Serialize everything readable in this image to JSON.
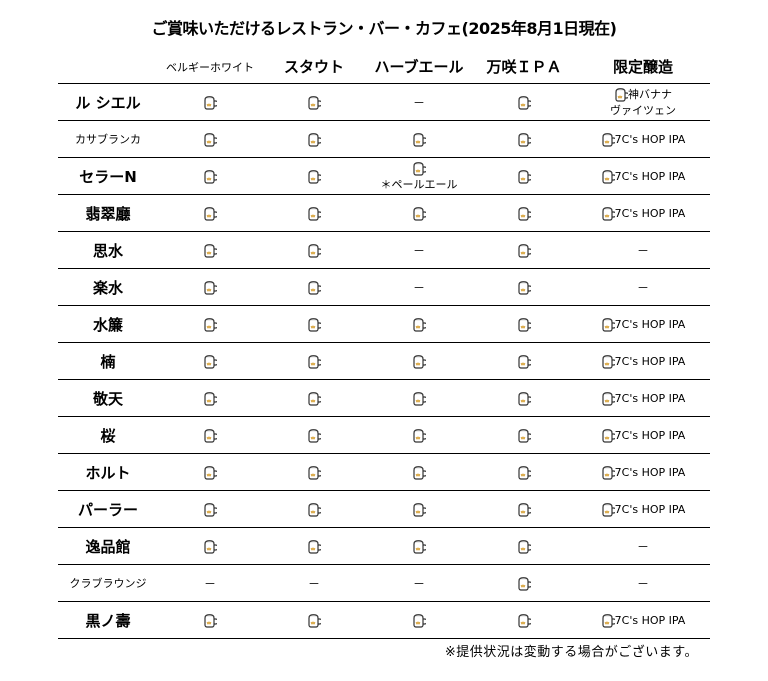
{
  "title": "ご賞味いただけるレストラン・バー・カフェ(2025年8月1日現在)",
  "columns": [
    "",
    "ベルギーホワイト",
    "スタウト",
    "ハーブエール",
    "万咲ＩＰＡ",
    "限定醸造"
  ],
  "icon": "beer-mug-icon",
  "rows": [
    {
      "name": "ル シエル",
      "cells": [
        {
          "icon": true
        },
        {
          "icon": true
        },
        {
          "text": "－"
        },
        {
          "icon": true
        },
        {
          "icon": true,
          "text": "神バナナ",
          "text2": "ヴァイツェン"
        }
      ]
    },
    {
      "name": "カサブランカ",
      "small": true,
      "cells": [
        {
          "icon": true
        },
        {
          "icon": true
        },
        {
          "icon": true
        },
        {
          "icon": true
        },
        {
          "icon": true,
          "text": "7C's HOP IPA"
        }
      ]
    },
    {
      "name": "セラーN",
      "cells": [
        {
          "icon": true
        },
        {
          "icon": true
        },
        {
          "icon": true,
          "text2": "＊ペールエール"
        },
        {
          "icon": true
        },
        {
          "icon": true,
          "text": "7C's HOP IPA"
        }
      ]
    },
    {
      "name": "翡翠廳",
      "cells": [
        {
          "icon": true
        },
        {
          "icon": true
        },
        {
          "icon": true
        },
        {
          "icon": true
        },
        {
          "icon": true,
          "text": "7C's HOP IPA"
        }
      ]
    },
    {
      "name": "思水",
      "cells": [
        {
          "icon": true
        },
        {
          "icon": true
        },
        {
          "text": "－"
        },
        {
          "icon": true
        },
        {
          "text": "－"
        }
      ]
    },
    {
      "name": "楽水",
      "cells": [
        {
          "icon": true
        },
        {
          "icon": true
        },
        {
          "text": "－"
        },
        {
          "icon": true
        },
        {
          "text": "－"
        }
      ]
    },
    {
      "name": "水簾",
      "cells": [
        {
          "icon": true
        },
        {
          "icon": true
        },
        {
          "icon": true
        },
        {
          "icon": true
        },
        {
          "icon": true,
          "text": "7C's HOP IPA"
        }
      ]
    },
    {
      "name": "楠",
      "cells": [
        {
          "icon": true
        },
        {
          "icon": true
        },
        {
          "icon": true
        },
        {
          "icon": true
        },
        {
          "icon": true,
          "text": "7C's HOP IPA"
        }
      ]
    },
    {
      "name": "敬天",
      "cells": [
        {
          "icon": true
        },
        {
          "icon": true
        },
        {
          "icon": true
        },
        {
          "icon": true
        },
        {
          "icon": true,
          "text": "7C's HOP IPA"
        }
      ]
    },
    {
      "name": "桜",
      "cells": [
        {
          "icon": true
        },
        {
          "icon": true
        },
        {
          "icon": true
        },
        {
          "icon": true
        },
        {
          "icon": true,
          "text": "7C's HOP IPA"
        }
      ]
    },
    {
      "name": "ホルト",
      "cells": [
        {
          "icon": true
        },
        {
          "icon": true
        },
        {
          "icon": true
        },
        {
          "icon": true
        },
        {
          "icon": true,
          "text": "7C's HOP IPA"
        }
      ]
    },
    {
      "name": "パーラー",
      "cells": [
        {
          "icon": true
        },
        {
          "icon": true
        },
        {
          "icon": true
        },
        {
          "icon": true
        },
        {
          "icon": true,
          "text": "7C's HOP IPA"
        }
      ]
    },
    {
      "name": "逸品館",
      "cells": [
        {
          "icon": true
        },
        {
          "icon": true
        },
        {
          "icon": true
        },
        {
          "icon": true
        },
        {
          "text": "－"
        }
      ]
    },
    {
      "name": "クラブラウンジ",
      "small": true,
      "cells": [
        {
          "text": "－"
        },
        {
          "text": "－"
        },
        {
          "text": "－"
        },
        {
          "icon": true
        },
        {
          "text": "－"
        }
      ]
    },
    {
      "name": "黒ノ壽",
      "cells": [
        {
          "icon": true
        },
        {
          "icon": true
        },
        {
          "icon": true
        },
        {
          "icon": true
        },
        {
          "icon": true,
          "text": "7C's HOP IPA"
        }
      ]
    }
  ],
  "note": "※提供状況は変動する場合がございます。"
}
